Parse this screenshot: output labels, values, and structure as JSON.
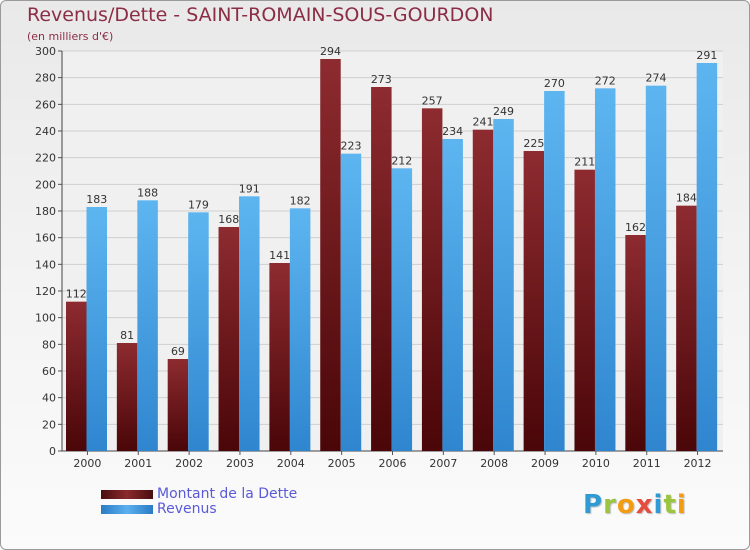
{
  "header": {
    "title": "Revenus/Dette - SAINT-ROMAIN-SOUS-GOURDON",
    "subtitle": "(en milliers d'€)"
  },
  "chart_data": {
    "type": "bar",
    "categories": [
      "2000",
      "2001",
      "2002",
      "2003",
      "2004",
      "2005",
      "2006",
      "2007",
      "2008",
      "2009",
      "2010",
      "2011",
      "2012"
    ],
    "series": [
      {
        "name": "Montant de la Dette",
        "values": [
          112,
          81,
          69,
          168,
          141,
          294,
          273,
          257,
          241,
          225,
          211,
          162,
          184
        ],
        "color": "#7a1f22"
      },
      {
        "name": "Revenus",
        "values": [
          183,
          188,
          179,
          191,
          182,
          223,
          212,
          234,
          249,
          270,
          272,
          274,
          291
        ],
        "color": "#3f9ae0"
      }
    ],
    "ylim": [
      0,
      300
    ],
    "yticks": [
      0,
      20,
      40,
      60,
      80,
      100,
      120,
      140,
      160,
      180,
      200,
      220,
      240,
      260,
      280,
      300
    ],
    "grid": true,
    "legend": "bottom-left"
  },
  "legend": {
    "items": [
      {
        "label": "Montant de la Dette",
        "color": "#7a1f22"
      },
      {
        "label": "Revenus",
        "color": "#3f9ae0"
      }
    ]
  },
  "logo": {
    "letters": [
      {
        "ch": "P",
        "color": "#2e9bd6"
      },
      {
        "ch": "r",
        "color": "#9bc53d"
      },
      {
        "ch": "o",
        "color": "#f39c12"
      },
      {
        "ch": "x",
        "color": "#e84c3d"
      },
      {
        "ch": "i",
        "color": "#2e9bd6"
      },
      {
        "ch": "t",
        "color": "#9bc53d"
      },
      {
        "ch": "i",
        "color": "#f39c12"
      }
    ]
  }
}
